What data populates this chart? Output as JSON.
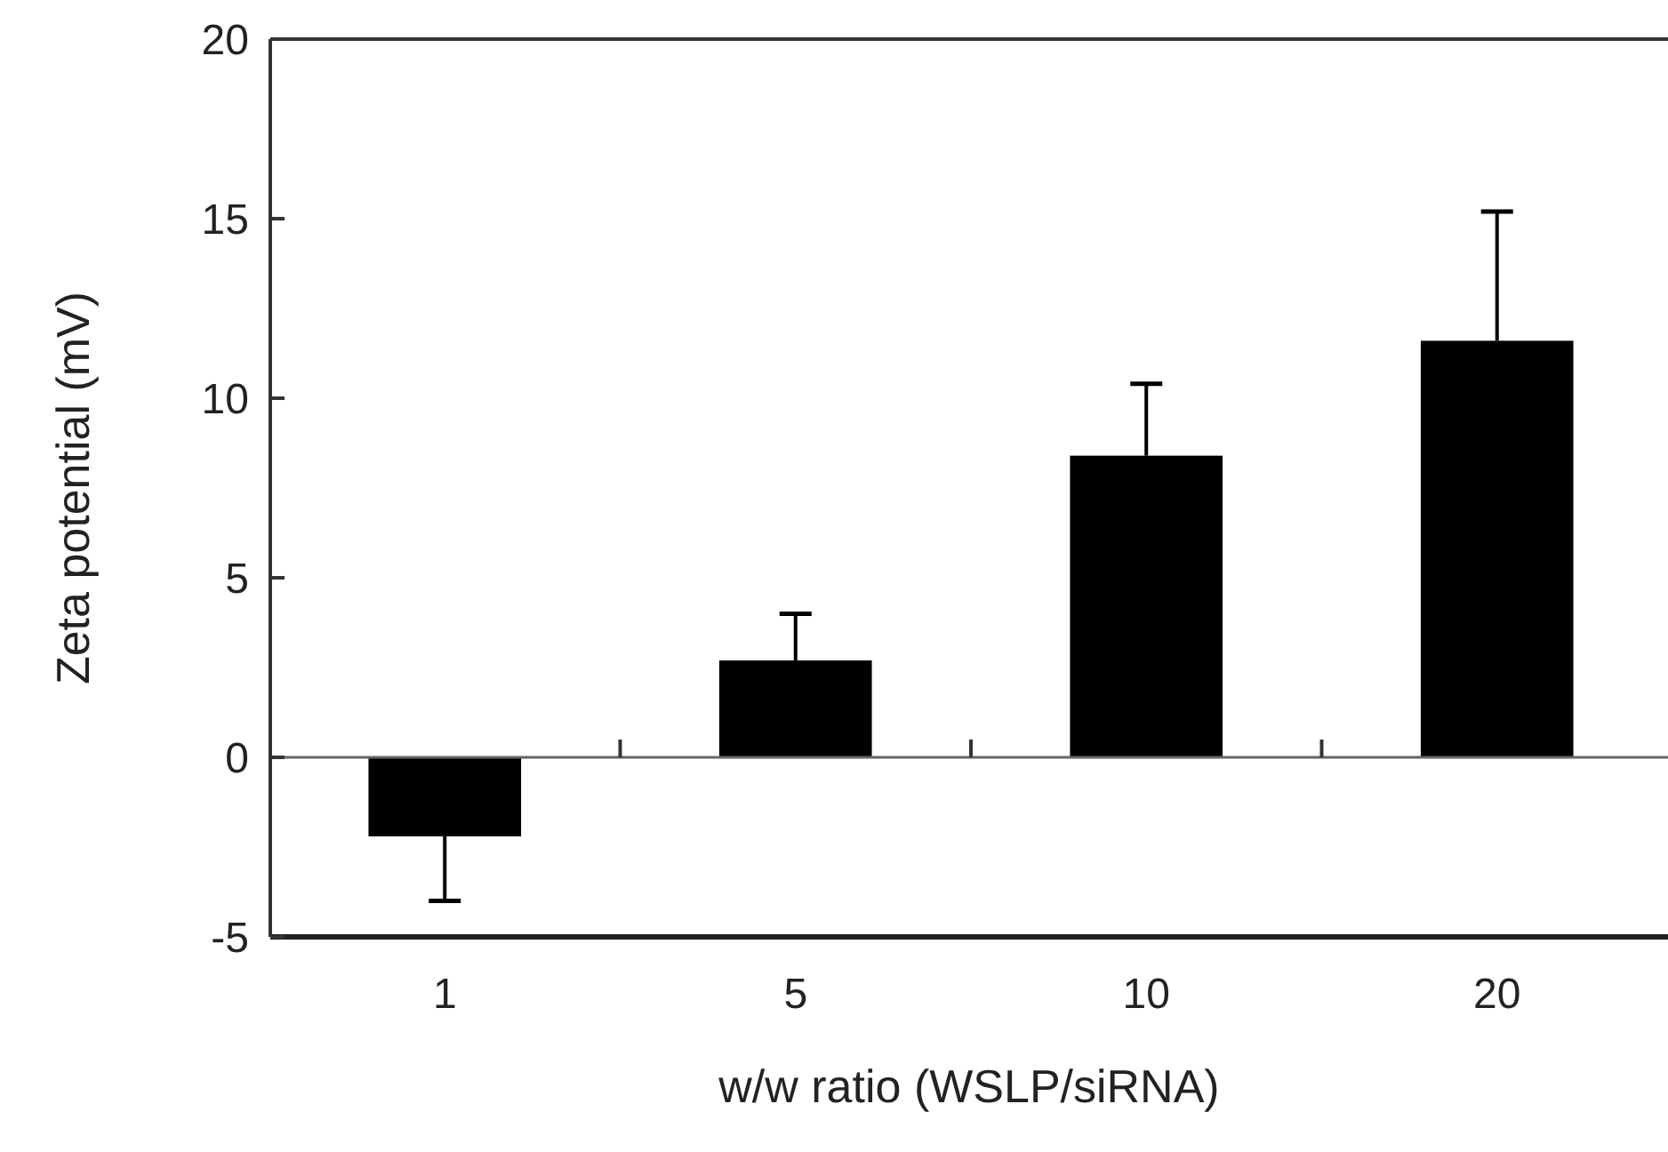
{
  "chart_data": {
    "type": "bar",
    "xlabel": "w/w ratio (WSLP/siRNA)",
    "ylabel": "Zeta potential (mV)",
    "categories": [
      "1",
      "5",
      "10",
      "20"
    ],
    "values": [
      -2.2,
      2.7,
      8.4,
      11.6
    ],
    "errors": [
      1.8,
      1.3,
      2.0,
      3.6
    ],
    "color": "#000000",
    "ylim": [
      -5,
      20
    ],
    "yticks": [
      -5,
      0,
      5,
      10,
      15,
      20
    ]
  }
}
